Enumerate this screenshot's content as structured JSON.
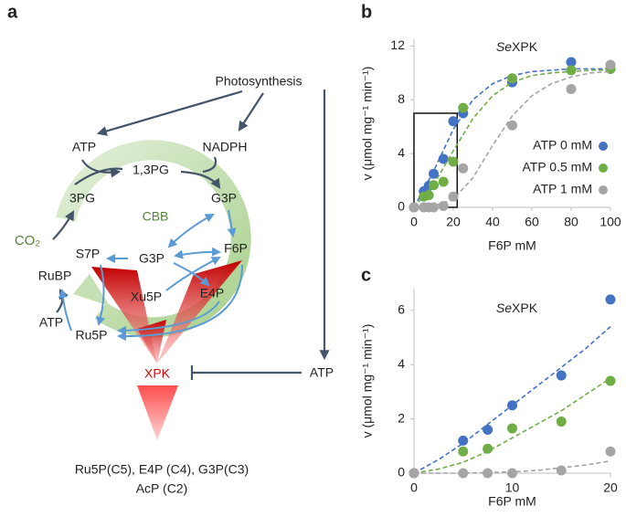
{
  "diagram": {
    "panel": "a",
    "nodes": [
      "Photosynthesis",
      "ATP",
      "NADPH",
      "1,3PG",
      "3PG",
      "G3P",
      "CBB",
      "CO₂",
      "RuBP",
      "S7P",
      "G3P",
      "F6P",
      "Xu5P",
      "E4P",
      "ATP",
      "Ru5P",
      "XPK",
      "ATP",
      "Ru5P(C5), E4P (C4), G3P(C3)",
      "AcP (C2)"
    ]
  },
  "chart_data": [
    {
      "type": "scatter",
      "panel": "b",
      "title_italic": "Se",
      "title": "XPK",
      "xlabel": "F6P mM",
      "ylabel": "v (μmol mg⁻¹ min⁻¹)",
      "x": [
        0,
        5,
        7.5,
        10,
        15,
        20,
        25,
        50,
        80,
        100
      ],
      "xlim": [
        0,
        100
      ],
      "xticks": [
        0,
        20,
        40,
        60,
        80,
        100
      ],
      "ylim": [
        0,
        12.5
      ],
      "yticks": [
        0,
        4,
        8,
        12
      ],
      "legend": "right",
      "zoom_box": {
        "xlim": [
          0,
          22
        ],
        "ylim": [
          0,
          7
        ]
      },
      "fit_x": [
        0,
        10,
        20,
        30,
        40,
        50,
        60,
        70,
        80,
        90,
        100
      ],
      "series": [
        {
          "name": "ATP 0 mM",
          "color": "#4472c4",
          "values": [
            0,
            1.2,
            1.6,
            2.5,
            3.6,
            6.4,
            7.0,
            9.3,
            10.8,
            10.3
          ],
          "fit": [
            0,
            2.7,
            5.8,
            8.0,
            9.2,
            9.8,
            10.1,
            10.2,
            10.3,
            10.3,
            10.3
          ]
        },
        {
          "name": "ATP 0.5 mM",
          "color": "#70ad47",
          "values": [
            0,
            0.8,
            0.9,
            1.65,
            1.9,
            3.4,
            7.4,
            9.6,
            10.2,
            10.3
          ],
          "fit": [
            0,
            1.7,
            4.2,
            6.6,
            8.3,
            9.3,
            9.8,
            10.0,
            10.1,
            10.2,
            10.2
          ]
        },
        {
          "name": "ATP 1 mM",
          "color": "#a5a5a5",
          "values": [
            0,
            0,
            0,
            0,
            0.1,
            0.8,
            2.9,
            6.1,
            8.8,
            10.6
          ],
          "fit": [
            0,
            0.1,
            0.6,
            2.2,
            4.6,
            6.8,
            8.3,
            9.2,
            9.7,
            10.0,
            10.1
          ]
        }
      ]
    },
    {
      "type": "scatter",
      "panel": "c",
      "title_italic": "Se",
      "title": "XPK",
      "xlabel": "F6P mM",
      "ylabel": "v (μmol mg⁻¹ min⁻¹)",
      "x": [
        0,
        5,
        7.5,
        10,
        15,
        20
      ],
      "xlim": [
        0,
        20
      ],
      "xticks": [
        0,
        10,
        20
      ],
      "ylim": [
        0,
        6.8
      ],
      "yticks": [
        0,
        2,
        4,
        6
      ],
      "fit_x": [
        0,
        2.5,
        5,
        7.5,
        10,
        12.5,
        15,
        17.5,
        20
      ],
      "series": [
        {
          "color": "#4472c4",
          "values": [
            0,
            1.2,
            1.6,
            2.5,
            3.6,
            6.4
          ],
          "fit": [
            0,
            0.5,
            1.1,
            1.8,
            2.5,
            3.2,
            3.9,
            4.6,
            5.4
          ]
        },
        {
          "color": "#70ad47",
          "values": [
            0,
            0.8,
            0.9,
            1.65,
            1.9,
            3.4
          ],
          "fit": [
            0,
            0.15,
            0.4,
            0.8,
            1.3,
            1.8,
            2.3,
            2.9,
            3.5
          ]
        },
        {
          "color": "#a5a5a5",
          "values": [
            0,
            0,
            0,
            0,
            0.1,
            0.8
          ],
          "fit": [
            0,
            0,
            0,
            0.02,
            0.05,
            0.1,
            0.2,
            0.3,
            0.45
          ]
        }
      ]
    }
  ]
}
